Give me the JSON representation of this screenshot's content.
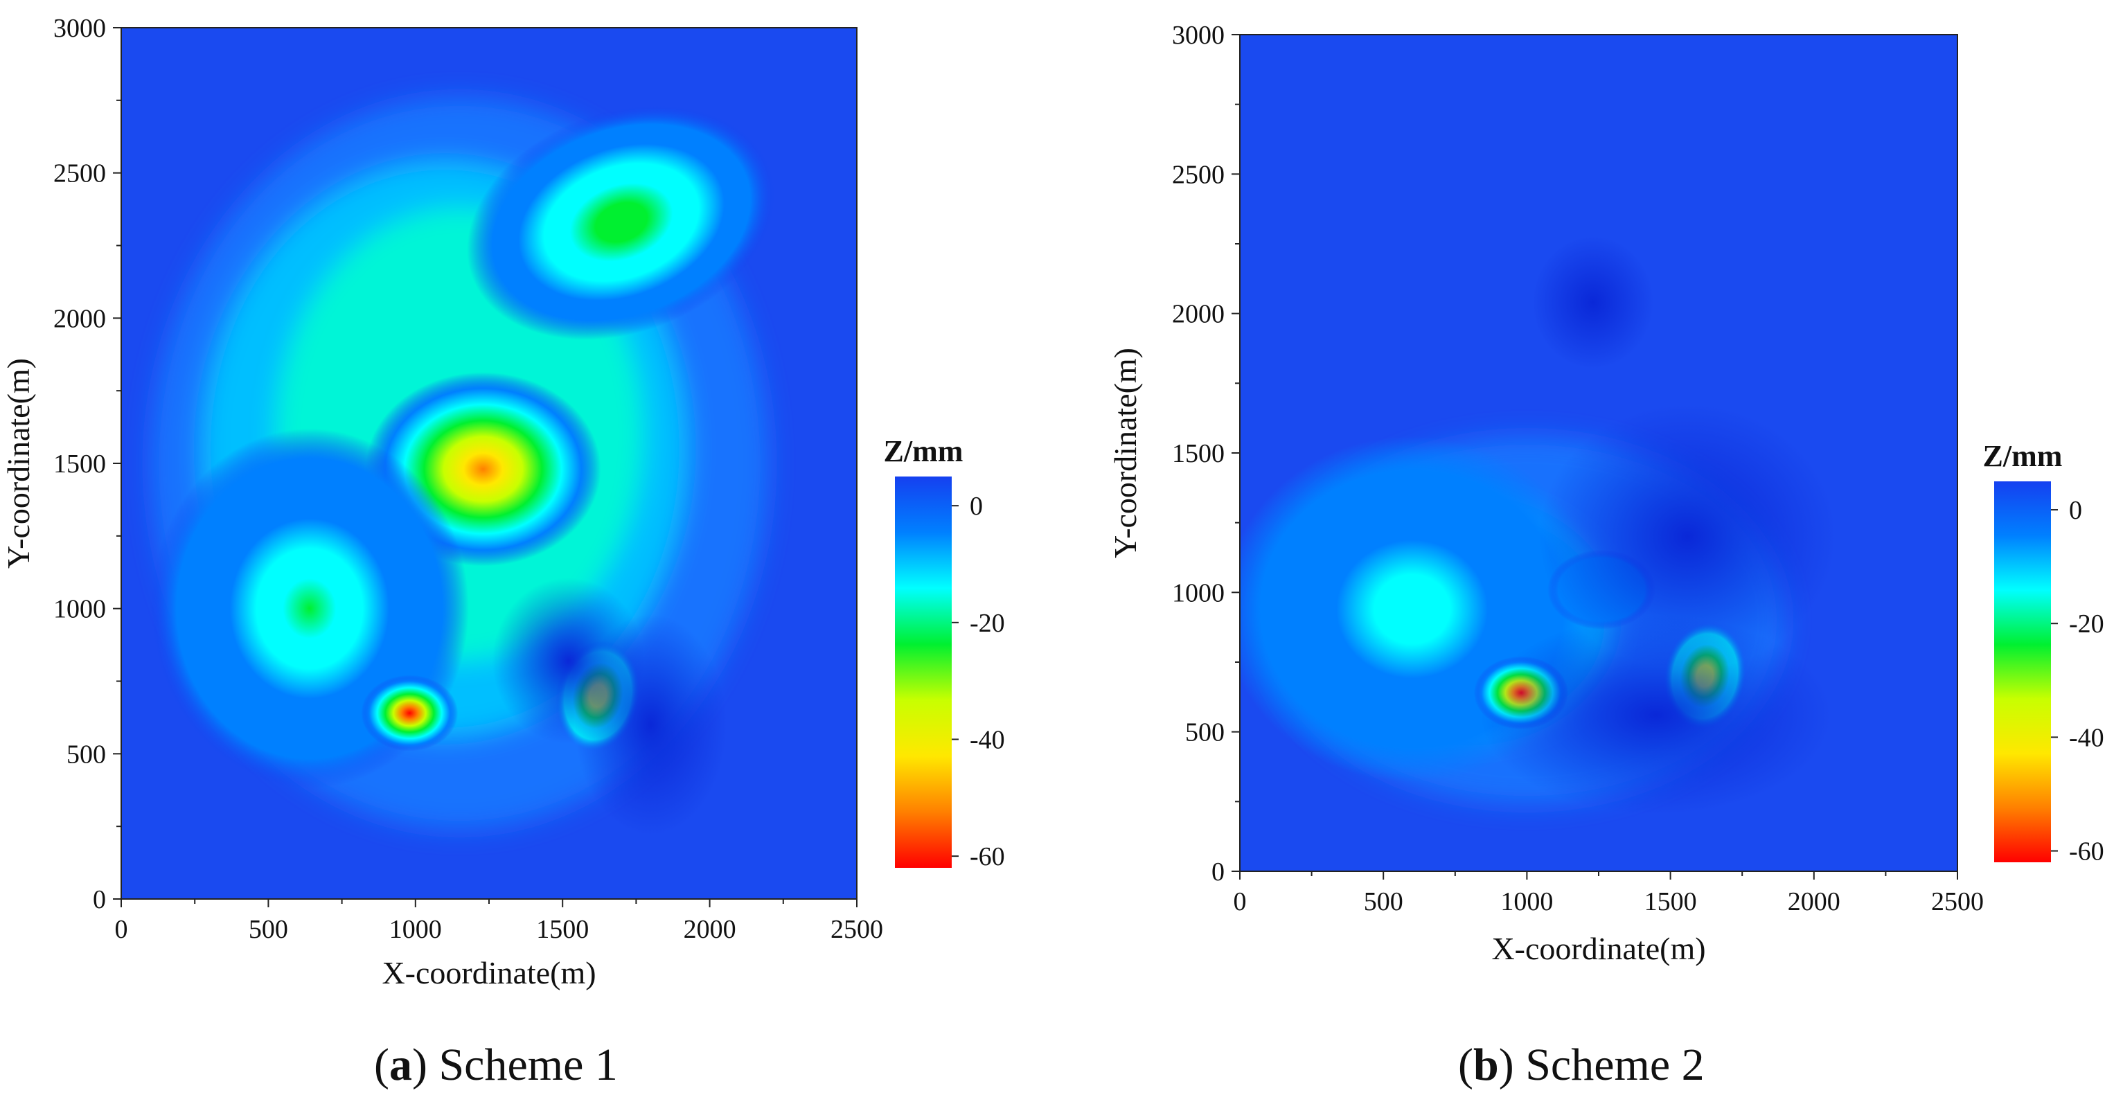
{
  "chart_data": [
    {
      "type": "heatmap",
      "subplot_letter": "a",
      "subplot_title": "Scheme 1",
      "xlabel": "X-coordinate(m)",
      "ylabel": "Y-coordinate(m)",
      "xlim": [
        0,
        2500
      ],
      "ylim": [
        0,
        3000
      ],
      "x_ticks": [
        0,
        500,
        1000,
        1500,
        2000,
        2500
      ],
      "y_ticks": [
        0,
        500,
        1000,
        1500,
        2000,
        2500,
        3000
      ],
      "colorbar": {
        "label": "Z/mm",
        "range": [
          -62,
          5
        ],
        "ticks": [
          0,
          -20,
          -40,
          -60
        ],
        "colors": [
          "#1540f0",
          "#0080ff",
          "#00ffff",
          "#00f030",
          "#c8ff00",
          "#ffe800",
          "#ff8000",
          "#ff0000"
        ]
      },
      "grid": false,
      "features": [
        {
          "kind": "subsidence",
          "x": 1230,
          "y": 1480,
          "z": -55
        },
        {
          "kind": "subsidence",
          "x": 1700,
          "y": 2330,
          "z": -25
        },
        {
          "kind": "subsidence",
          "x": 640,
          "y": 1000,
          "z": -20
        },
        {
          "kind": "subsidence",
          "x": 980,
          "y": 640,
          "z": -58
        },
        {
          "kind": "subsidence",
          "x": 1620,
          "y": 700,
          "z": -38
        },
        {
          "kind": "uplift",
          "x": 1520,
          "y": 820,
          "z": 4
        },
        {
          "kind": "uplift",
          "x": 1800,
          "y": 600,
          "z": 4
        }
      ]
    },
    {
      "type": "heatmap",
      "subplot_letter": "b",
      "subplot_title": "Scheme 2",
      "xlabel": "X-coordinate(m)",
      "ylabel": "Y-coordinate(m)",
      "xlim": [
        0,
        2500
      ],
      "ylim": [
        0,
        3000
      ],
      "x_ticks": [
        0,
        500,
        1000,
        1500,
        2000,
        2500
      ],
      "y_ticks": [
        0,
        500,
        1000,
        1500,
        2000,
        2500,
        3000
      ],
      "colorbar": {
        "label": "Z/mm",
        "range": [
          -62,
          5
        ],
        "ticks": [
          0,
          -20,
          -40,
          -60
        ],
        "colors": [
          "#1540f0",
          "#0080ff",
          "#00ffff",
          "#00f030",
          "#c8ff00",
          "#ffe800",
          "#ff8000",
          "#ff0000"
        ]
      },
      "grid": false,
      "features": [
        {
          "kind": "subsidence",
          "x": 600,
          "y": 940,
          "z": -15
        },
        {
          "kind": "subsidence",
          "x": 980,
          "y": 640,
          "z": -58
        },
        {
          "kind": "subsidence",
          "x": 1620,
          "y": 700,
          "z": -38
        },
        {
          "kind": "subsidence",
          "x": 1260,
          "y": 1010,
          "z": -8
        },
        {
          "kind": "uplift",
          "x": 1230,
          "y": 2040,
          "z": 4
        },
        {
          "kind": "uplift",
          "x": 1560,
          "y": 1200,
          "z": 4
        },
        {
          "kind": "uplift",
          "x": 1450,
          "y": 560,
          "z": 3
        }
      ]
    }
  ]
}
